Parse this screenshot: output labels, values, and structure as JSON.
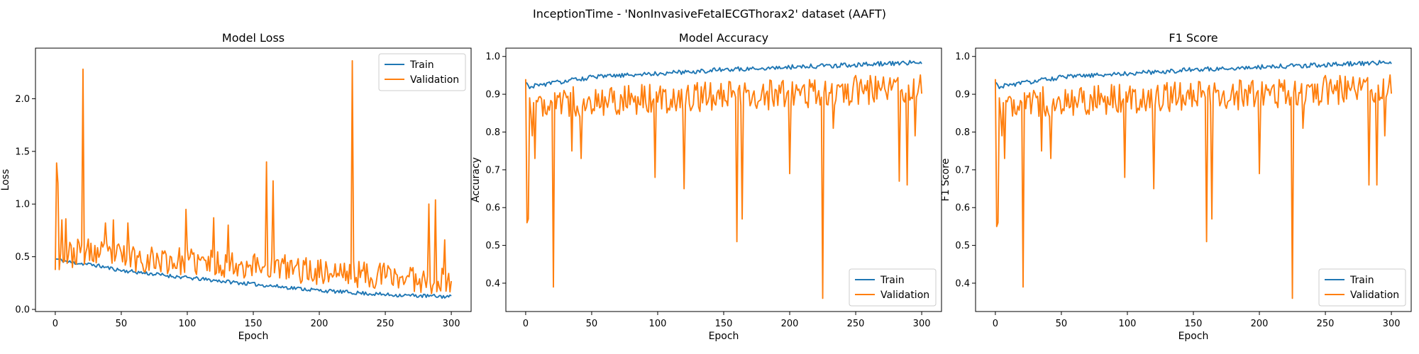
{
  "figure": {
    "suptitle": "InceptionTime - 'NonInvasiveFetalECGThorax2' dataset (AAFT)"
  },
  "colors": {
    "train": "#1f77b4",
    "validation": "#ff7f0e"
  },
  "chart_data": [
    {
      "id": "loss",
      "type": "line",
      "title": "Model Loss",
      "xlabel": "Epoch",
      "ylabel": "Loss",
      "xlim": [
        -15,
        315
      ],
      "ylim": [
        -0.02,
        2.48
      ],
      "xticks": [
        0,
        50,
        100,
        150,
        200,
        250,
        300
      ],
      "yticks": [
        0.0,
        0.5,
        1.0,
        1.5,
        2.0
      ],
      "ytick_labels": [
        "0.0",
        "0.5",
        "1.0",
        "1.5",
        "2.0"
      ],
      "legend_position": "upper right",
      "series": [
        {
          "name": "Train",
          "key": "train",
          "anchors": [
            [
              0,
              0.48
            ],
            [
              10,
              0.45
            ],
            [
              30,
              0.42
            ],
            [
              50,
              0.37
            ],
            [
              100,
              0.3
            ],
            [
              150,
              0.24
            ],
            [
              200,
              0.18
            ],
            [
              250,
              0.14
            ],
            [
              300,
              0.12
            ]
          ],
          "noise": 0.018,
          "seed": 11
        },
        {
          "name": "Validation",
          "key": "validation",
          "anchors": [
            [
              0,
              0.48
            ],
            [
              20,
              0.55
            ],
            [
              50,
              0.5
            ],
            [
              100,
              0.45
            ],
            [
              150,
              0.42
            ],
            [
              200,
              0.36
            ],
            [
              250,
              0.32
            ],
            [
              300,
              0.26
            ]
          ],
          "noise": 0.13,
          "seed": 23,
          "min": 0.12,
          "spikes": [
            [
              1,
              1.39
            ],
            [
              2,
              1.2
            ],
            [
              5,
              0.85
            ],
            [
              8,
              0.86
            ],
            [
              21,
              2.28
            ],
            [
              38,
              0.82
            ],
            [
              44,
              0.85
            ],
            [
              55,
              0.82
            ],
            [
              99,
              0.95
            ],
            [
              120,
              0.87
            ],
            [
              131,
              0.8
            ],
            [
              160,
              1.4
            ],
            [
              165,
              1.22
            ],
            [
              225,
              2.36
            ],
            [
              283,
              1.0
            ],
            [
              288,
              1.04
            ],
            [
              295,
              0.66
            ]
          ]
        }
      ]
    },
    {
      "id": "accuracy",
      "type": "line",
      "title": "Model Accuracy",
      "xlabel": "Epoch",
      "ylabel": "Accuracy",
      "xlim": [
        -15,
        315
      ],
      "ylim": [
        0.325,
        1.022
      ],
      "xticks": [
        0,
        50,
        100,
        150,
        200,
        250,
        300
      ],
      "yticks": [
        0.4,
        0.5,
        0.6,
        0.7,
        0.8,
        0.9,
        1.0
      ],
      "ytick_labels": [
        "0.4",
        "0.5",
        "0.6",
        "0.7",
        "0.8",
        "0.9",
        "1.0"
      ],
      "legend_position": "lower right",
      "series": [
        {
          "name": "Train",
          "key": "train",
          "anchors": [
            [
              0,
              0.93
            ],
            [
              2,
              0.92
            ],
            [
              50,
              0.945
            ],
            [
              100,
              0.955
            ],
            [
              150,
              0.965
            ],
            [
              200,
              0.972
            ],
            [
              250,
              0.978
            ],
            [
              300,
              0.985
            ]
          ],
          "noise": 0.006,
          "seed": 31,
          "max": 0.993
        },
        {
          "name": "Validation",
          "key": "validation",
          "anchors": [
            [
              0,
              0.88
            ],
            [
              50,
              0.88
            ],
            [
              100,
              0.89
            ],
            [
              150,
              0.895
            ],
            [
              200,
              0.9
            ],
            [
              250,
              0.91
            ],
            [
              300,
              0.92
            ]
          ],
          "noise": 0.04,
          "seed": 47,
          "max": 0.96,
          "spikes": [
            [
              0,
              0.94
            ],
            [
              1,
              0.56
            ],
            [
              2,
              0.57
            ],
            [
              5,
              0.79
            ],
            [
              7,
              0.73
            ],
            [
              21,
              0.39
            ],
            [
              35,
              0.75
            ],
            [
              42,
              0.73
            ],
            [
              98,
              0.68
            ],
            [
              120,
              0.65
            ],
            [
              160,
              0.51
            ],
            [
              164,
              0.57
            ],
            [
              200,
              0.69
            ],
            [
              225,
              0.36
            ],
            [
              233,
              0.81
            ],
            [
              283,
              0.67
            ],
            [
              289,
              0.66
            ],
            [
              295,
              0.79
            ]
          ]
        }
      ]
    },
    {
      "id": "f1",
      "type": "line",
      "title": "F1 Score",
      "xlabel": "Epoch",
      "ylabel": "F1 Score",
      "xlim": [
        -15,
        315
      ],
      "ylim": [
        0.325,
        1.022
      ],
      "xticks": [
        0,
        50,
        100,
        150,
        200,
        250,
        300
      ],
      "yticks": [
        0.4,
        0.5,
        0.6,
        0.7,
        0.8,
        0.9,
        1.0
      ],
      "ytick_labels": [
        "0.4",
        "0.5",
        "0.6",
        "0.7",
        "0.8",
        "0.9",
        "1.0"
      ],
      "legend_position": "lower right",
      "series": [
        {
          "name": "Train",
          "key": "train",
          "anchors": [
            [
              0,
              0.93
            ],
            [
              2,
              0.92
            ],
            [
              50,
              0.945
            ],
            [
              100,
              0.955
            ],
            [
              150,
              0.965
            ],
            [
              200,
              0.972
            ],
            [
              250,
              0.978
            ],
            [
              300,
              0.985
            ]
          ],
          "noise": 0.006,
          "seed": 31,
          "max": 0.993
        },
        {
          "name": "Validation",
          "key": "validation",
          "anchors": [
            [
              0,
              0.88
            ],
            [
              50,
              0.88
            ],
            [
              100,
              0.89
            ],
            [
              150,
              0.895
            ],
            [
              200,
              0.9
            ],
            [
              250,
              0.91
            ],
            [
              300,
              0.92
            ]
          ],
          "noise": 0.04,
          "seed": 47,
          "max": 0.96,
          "spikes": [
            [
              0,
              0.94
            ],
            [
              1,
              0.55
            ],
            [
              2,
              0.56
            ],
            [
              5,
              0.79
            ],
            [
              7,
              0.73
            ],
            [
              21,
              0.39
            ],
            [
              35,
              0.75
            ],
            [
              42,
              0.73
            ],
            [
              98,
              0.68
            ],
            [
              120,
              0.65
            ],
            [
              160,
              0.51
            ],
            [
              164,
              0.57
            ],
            [
              200,
              0.69
            ],
            [
              225,
              0.36
            ],
            [
              233,
              0.81
            ],
            [
              283,
              0.66
            ],
            [
              289,
              0.66
            ],
            [
              295,
              0.79
            ]
          ]
        }
      ]
    }
  ]
}
